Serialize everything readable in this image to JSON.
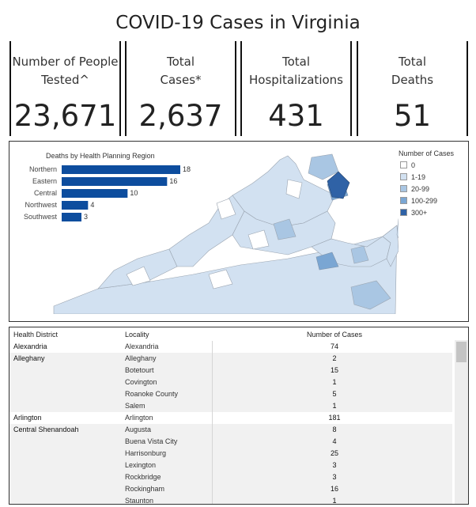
{
  "title": "COVID-19 Cases in Virginia",
  "kpis": [
    {
      "label": "Number of People\nTested^",
      "value": "23,671"
    },
    {
      "label": "Total\nCases*",
      "value": "2,637"
    },
    {
      "label": "Total\nHospitalizations",
      "value": "431"
    },
    {
      "label": "Total\nDeaths",
      "value": "51"
    }
  ],
  "chart_data": {
    "type": "bar",
    "orientation": "horizontal",
    "title": "Deaths by Health Planning Region",
    "categories": [
      "Northern",
      "Eastern",
      "Central",
      "Northwest",
      "Southwest"
    ],
    "values": [
      18,
      16,
      10,
      4,
      3
    ],
    "color": "#0d4d9e"
  },
  "map": {
    "legend_title": "Number of Cases",
    "legend": [
      {
        "label": "0",
        "color": "#ffffff"
      },
      {
        "label": "1-19",
        "color": "#d2e1f1"
      },
      {
        "label": "20-99",
        "color": "#a9c6e3"
      },
      {
        "label": "100-299",
        "color": "#7aa6d3"
      },
      {
        "label": "300+",
        "color": "#2f62a6"
      }
    ]
  },
  "table": {
    "headers": [
      "Health District",
      "Locality",
      "Number of Cases"
    ],
    "rows": [
      {
        "district": "Alexandria",
        "locality": "Alexandria",
        "cases": "74"
      },
      {
        "district": "Alleghany",
        "locality": "Alleghany",
        "cases": "2"
      },
      {
        "district": "",
        "locality": "Botetourt",
        "cases": "15"
      },
      {
        "district": "",
        "locality": "Covington",
        "cases": "1"
      },
      {
        "district": "",
        "locality": "Roanoke County",
        "cases": "5"
      },
      {
        "district": "",
        "locality": "Salem",
        "cases": "1"
      },
      {
        "district": "Arlington",
        "locality": "Arlington",
        "cases": "181"
      },
      {
        "district": "Central Shenandoah",
        "locality": "Augusta",
        "cases": "8"
      },
      {
        "district": "",
        "locality": "Buena Vista City",
        "cases": "4"
      },
      {
        "district": "",
        "locality": "Harrisonburg",
        "cases": "25"
      },
      {
        "district": "",
        "locality": "Lexington",
        "cases": "3"
      },
      {
        "district": "",
        "locality": "Rockbridge",
        "cases": "3"
      },
      {
        "district": "",
        "locality": "Rockingham",
        "cases": "16"
      },
      {
        "district": "",
        "locality": "Staunton",
        "cases": "1"
      }
    ]
  }
}
